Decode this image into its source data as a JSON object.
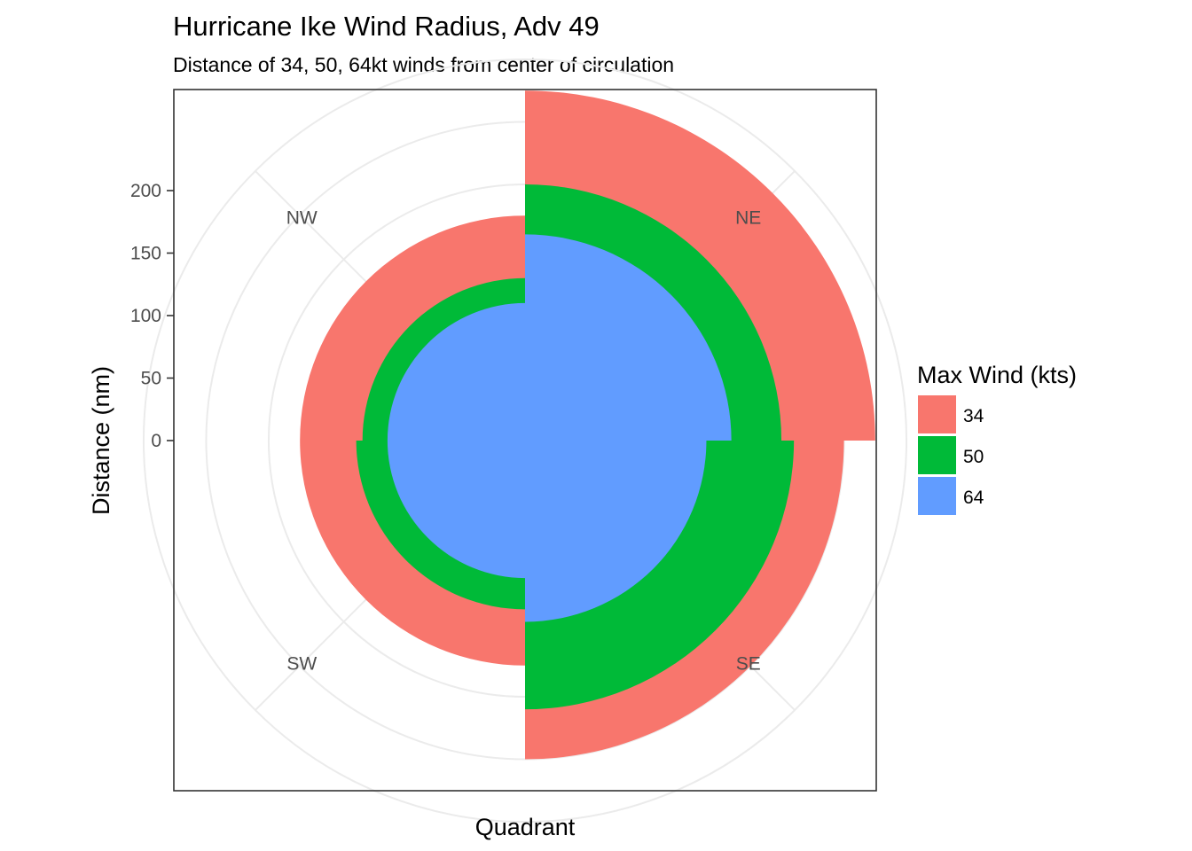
{
  "chart_data": {
    "type": "polar-bar",
    "title": "Hurricane Ike Wind Radius, Adv 49",
    "subtitle": "Distance of 34, 50, 64kt winds from center of circulation",
    "xlabel": "Quadrant",
    "ylabel": "Distance (nm)",
    "categories": [
      "NE",
      "SE",
      "SW",
      "NW"
    ],
    "y_ticks": [
      "0",
      "50",
      "100",
      "150",
      "200"
    ],
    "y_tick_values": [
      0,
      50,
      100,
      150,
      200
    ],
    "legend_title": "Max Wind (kts)",
    "series": [
      {
        "name": "34",
        "color": "#F8766D",
        "values": [
          225,
          200,
          125,
          125
        ]
      },
      {
        "name": "50",
        "color": "#00BA38",
        "values": [
          150,
          160,
          80,
          75
        ]
      },
      {
        "name": "64",
        "color": "#619CFF",
        "values": [
          110,
          90,
          55,
          55
        ]
      }
    ],
    "radial_offset": 55,
    "grid": true,
    "legend_position": "right"
  }
}
